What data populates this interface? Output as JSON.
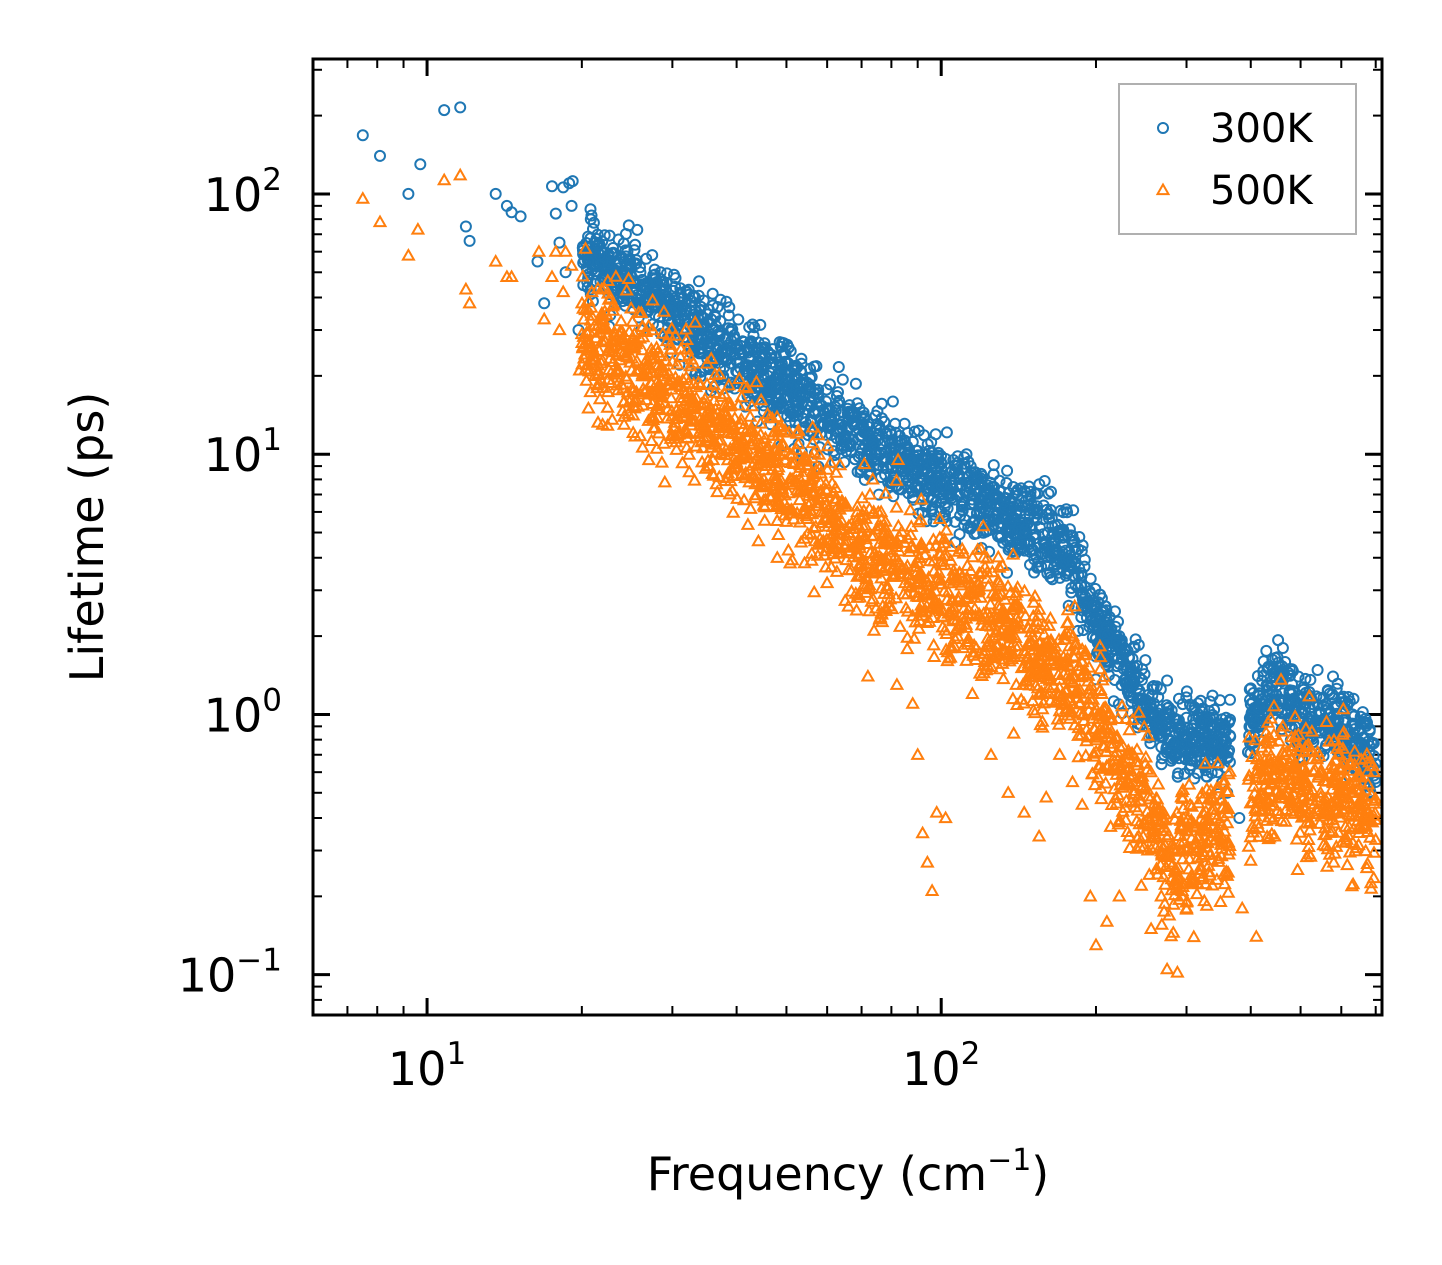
{
  "chart_data": {
    "type": "scatter",
    "xscale": "log",
    "yscale": "log",
    "xlim": [
      6,
      720
    ],
    "ylim": [
      0.07,
      330
    ],
    "xlabel": "Frequency (cm",
    "xlabel_sup": "−1",
    "xlabel_end": ")",
    "ylabel": "Lifetime (ps)",
    "x_ticks": [
      {
        "value": 10,
        "base": "10",
        "exp": "1"
      },
      {
        "value": 100,
        "base": "10",
        "exp": "2"
      }
    ],
    "y_ticks": [
      {
        "value": 0.1,
        "base": "10",
        "exp": "−1"
      },
      {
        "value": 1,
        "base": "10",
        "exp": "0"
      },
      {
        "value": 10,
        "base": "10",
        "exp": "1"
      },
      {
        "value": 100,
        "base": "10",
        "exp": "2"
      }
    ],
    "legend": {
      "position": "top-right"
    },
    "series": [
      {
        "name": "300K",
        "marker": "circle",
        "color": "#1f77b4",
        "trend": [
          [
            7.5,
            170
          ],
          [
            10,
            150
          ],
          [
            12,
            95
          ],
          [
            15,
            80
          ],
          [
            18,
            70
          ],
          [
            20,
            60
          ],
          [
            25,
            45
          ],
          [
            30,
            35
          ],
          [
            40,
            24
          ],
          [
            50,
            17
          ],
          [
            60,
            14
          ],
          [
            70,
            11.5
          ],
          [
            80,
            10
          ],
          [
            100,
            8
          ],
          [
            120,
            6.5
          ],
          [
            140,
            5.5
          ],
          [
            160,
            4.7
          ],
          [
            180,
            4
          ],
          [
            200,
            2.3
          ],
          [
            220,
            1.7
          ],
          [
            250,
            1.1
          ],
          [
            280,
            0.8
          ],
          [
            300,
            0.85
          ],
          [
            350,
            0.75
          ],
          [
            400,
            0.95
          ],
          [
            450,
            1.3
          ],
          [
            500,
            1.0
          ],
          [
            600,
            0.9
          ],
          [
            700,
            0.62
          ]
        ],
        "points": [
          [
            7.5,
            168
          ],
          [
            8.1,
            140
          ],
          [
            9.2,
            100
          ],
          [
            9.7,
            130
          ],
          [
            10.8,
            210
          ],
          [
            11.6,
            215
          ],
          [
            11.9,
            75
          ],
          [
            12.1,
            66
          ],
          [
            13.6,
            100
          ],
          [
            14.3,
            90
          ],
          [
            14.6,
            85
          ],
          [
            15.2,
            82
          ],
          [
            16.4,
            55
          ],
          [
            16.9,
            38
          ],
          [
            17.5,
            107
          ],
          [
            17.8,
            84
          ],
          [
            18.1,
            65
          ],
          [
            18.4,
            106
          ],
          [
            18.6,
            50
          ],
          [
            18.9,
            110
          ],
          [
            19.1,
            90
          ],
          [
            19.2,
            112
          ],
          [
            19.7,
            30
          ],
          [
            20.6,
            55
          ],
          [
            21.5,
            64
          ],
          [
            22,
            47
          ],
          [
            23,
            62
          ],
          [
            24.2,
            42
          ],
          [
            25,
            48
          ],
          [
            26,
            50
          ],
          [
            27,
            40
          ],
          [
            28.5,
            47
          ],
          [
            30,
            35
          ],
          [
            31.5,
            37
          ],
          [
            33,
            30
          ],
          [
            35,
            28
          ],
          [
            38,
            25
          ],
          [
            40,
            23
          ],
          [
            42,
            22
          ],
          [
            45,
            21
          ],
          [
            48,
            19.5
          ],
          [
            50,
            18
          ],
          [
            53,
            17
          ],
          [
            56,
            19.8
          ],
          [
            60,
            14.8
          ],
          [
            63,
            13
          ],
          [
            66,
            12.5
          ],
          [
            70,
            11.8
          ],
          [
            74,
            10.8
          ],
          [
            78,
            10.2
          ],
          [
            82,
            9.8
          ],
          [
            87,
            9.5
          ],
          [
            90,
            10.3
          ],
          [
            95,
            8.2
          ],
          [
            100,
            7.6
          ],
          [
            105,
            6.8
          ],
          [
            110,
            6.4
          ],
          [
            115,
            6.7
          ],
          [
            120,
            6.2
          ],
          [
            127,
            6.9
          ],
          [
            135,
            5.7
          ],
          [
            143,
            7.4
          ],
          [
            150,
            5.2
          ],
          [
            158,
            4.6
          ],
          [
            165,
            4.1
          ],
          [
            172,
            3.8
          ],
          [
            180,
            3.9
          ],
          [
            190,
            3.7
          ],
          [
            200,
            2.3
          ],
          [
            210,
            1.9
          ],
          [
            222,
            2.0
          ],
          [
            232,
            1.65
          ],
          [
            243,
            1.2
          ],
          [
            256,
            0.9
          ],
          [
            268,
            0.75
          ],
          [
            275,
            1.35
          ],
          [
            290,
            0.95
          ],
          [
            305,
            0.85
          ],
          [
            320,
            0.72
          ],
          [
            345,
            0.6
          ],
          [
            360,
            0.5
          ],
          [
            380,
            0.4
          ],
          [
            410,
            0.95
          ],
          [
            445,
            1.45
          ],
          [
            462,
            1.8
          ],
          [
            485,
            1.15
          ],
          [
            510,
            1.1
          ],
          [
            545,
            1.0
          ],
          [
            580,
            0.95
          ],
          [
            615,
            0.82
          ],
          [
            650,
            0.7
          ],
          [
            680,
            0.62
          ],
          [
            700,
            0.55
          ]
        ]
      },
      {
        "name": "500K",
        "marker": "triangle",
        "color": "#ff7f0e",
        "trend": [
          [
            7.5,
            95
          ],
          [
            10,
            80
          ],
          [
            12,
            55
          ],
          [
            15,
            48
          ],
          [
            18,
            40
          ],
          [
            20,
            30
          ],
          [
            25,
            22
          ],
          [
            30,
            17
          ],
          [
            40,
            11
          ],
          [
            50,
            8
          ],
          [
            60,
            5.8
          ],
          [
            70,
            4.5
          ],
          [
            80,
            3.8
          ],
          [
            100,
            3
          ],
          [
            120,
            2.5
          ],
          [
            140,
            2.0
          ],
          [
            160,
            1.6
          ],
          [
            180,
            1.35
          ],
          [
            200,
            0.9
          ],
          [
            220,
            0.65
          ],
          [
            250,
            0.45
          ],
          [
            280,
            0.25
          ],
          [
            300,
            0.3
          ],
          [
            350,
            0.34
          ],
          [
            400,
            0.45
          ],
          [
            450,
            0.65
          ],
          [
            500,
            0.52
          ],
          [
            600,
            0.48
          ],
          [
            700,
            0.42
          ]
        ],
        "points": [
          [
            7.5,
            96
          ],
          [
            8.1,
            78
          ],
          [
            9.2,
            58
          ],
          [
            9.6,
            73
          ],
          [
            10.8,
            113
          ],
          [
            11.6,
            118
          ],
          [
            11.9,
            43
          ],
          [
            12.1,
            38
          ],
          [
            13.6,
            55
          ],
          [
            14.3,
            48
          ],
          [
            14.6,
            48
          ],
          [
            16.5,
            60
          ],
          [
            16.9,
            33
          ],
          [
            17.5,
            48
          ],
          [
            17.8,
            60
          ],
          [
            18.1,
            30
          ],
          [
            18.4,
            42
          ],
          [
            18.6,
            60
          ],
          [
            19.1,
            53
          ],
          [
            19.8,
            21
          ],
          [
            20.6,
            15
          ],
          [
            21.2,
            20
          ],
          [
            22,
            18
          ],
          [
            23,
            27
          ],
          [
            24.2,
            16
          ],
          [
            25,
            21
          ],
          [
            26,
            17
          ],
          [
            27,
            9.5
          ],
          [
            28,
            15
          ],
          [
            29,
            7.8
          ],
          [
            30,
            14
          ],
          [
            32,
            12
          ],
          [
            34,
            13
          ],
          [
            36,
            9.5
          ],
          [
            38,
            7.9
          ],
          [
            40,
            9.2
          ],
          [
            43,
            8.3
          ],
          [
            46,
            10.5
          ],
          [
            48,
            4.0
          ],
          [
            50,
            5.5
          ],
          [
            53,
            7.2
          ],
          [
            56,
            3.9
          ],
          [
            58,
            8.8
          ],
          [
            60,
            3.2
          ],
          [
            63,
            5.5
          ],
          [
            66,
            2.6
          ],
          [
            70,
            3.6
          ],
          [
            72,
            1.4
          ],
          [
            74,
            2.1
          ],
          [
            78,
            2.5
          ],
          [
            82,
            1.3
          ],
          [
            85,
            3.2
          ],
          [
            88,
            1.1
          ],
          [
            90,
            0.7
          ],
          [
            92,
            0.35
          ],
          [
            94,
            0.27
          ],
          [
            96,
            0.21
          ],
          [
            98,
            0.42
          ],
          [
            102,
            0.4
          ],
          [
            105,
            1.8
          ],
          [
            110,
            2.7
          ],
          [
            115,
            1.2
          ],
          [
            120,
            2.2
          ],
          [
            125,
            0.7
          ],
          [
            130,
            1.7
          ],
          [
            135,
            0.5
          ],
          [
            140,
            1.3
          ],
          [
            145,
            0.42
          ],
          [
            150,
            1.9
          ],
          [
            155,
            0.34
          ],
          [
            160,
            0.48
          ],
          [
            165,
            1.6
          ],
          [
            170,
            0.7
          ],
          [
            175,
            1.05
          ],
          [
            180,
            0.55
          ],
          [
            188,
            0.45
          ],
          [
            195,
            0.2
          ],
          [
            200,
            0.13
          ],
          [
            210,
            0.16
          ],
          [
            222,
            0.2
          ],
          [
            232,
            0.34
          ],
          [
            245,
            0.22
          ],
          [
            256,
            0.15
          ],
          [
            268,
            0.2
          ],
          [
            275,
            0.105
          ],
          [
            288,
            0.102
          ],
          [
            300,
            0.18
          ],
          [
            315,
            0.28
          ],
          [
            330,
            0.32
          ],
          [
            345,
            0.34
          ],
          [
            360,
            0.24
          ],
          [
            385,
            0.18
          ],
          [
            410,
            0.14
          ],
          [
            445,
            0.34
          ],
          [
            462,
            0.9
          ],
          [
            485,
            0.6
          ],
          [
            510,
            0.55
          ],
          [
            545,
            0.38
          ],
          [
            580,
            0.27
          ],
          [
            615,
            0.33
          ],
          [
            650,
            0.5
          ],
          [
            680,
            0.4
          ],
          [
            700,
            0.33
          ]
        ]
      }
    ]
  }
}
